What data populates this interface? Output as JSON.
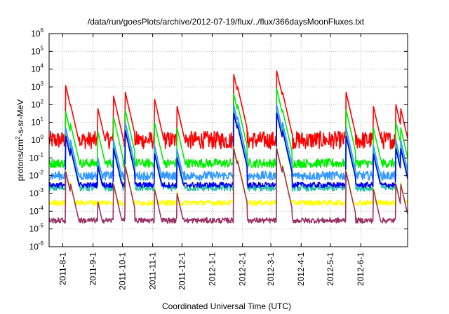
{
  "chart_data": {
    "type": "line",
    "title": "/data/run/goesPlots/archive/2012-07-19/flux/../flux/366daysMoonFluxes.txt",
    "xlabel": "Coordinated Universal Time (UTC)",
    "ylabel": {
      "base": "protons/cm",
      "sup": "2",
      "rest": "-s-sr-MeV"
    },
    "y_scale": "log",
    "ylim": [
      1e-06,
      1000000.0
    ],
    "y_ticks": [
      {
        "value": 1e-06,
        "base": "10",
        "exp": "-6"
      },
      {
        "value": 1e-05,
        "base": "10",
        "exp": "-5"
      },
      {
        "value": 0.0001,
        "base": "10",
        "exp": "-4"
      },
      {
        "value": 0.001,
        "base": "10",
        "exp": "-3"
      },
      {
        "value": 0.01,
        "base": "10",
        "exp": "-2"
      },
      {
        "value": 0.1,
        "base": "10",
        "exp": "-1"
      },
      {
        "value": 1.0,
        "base": "10",
        "exp": "0"
      },
      {
        "value": 10.0,
        "base": "10",
        "exp": "1"
      },
      {
        "value": 100.0,
        "base": "10",
        "exp": "2"
      },
      {
        "value": 1000.0,
        "base": "10",
        "exp": "3"
      },
      {
        "value": 10000.0,
        "base": "10",
        "exp": "4"
      },
      {
        "value": 100000.0,
        "base": "10",
        "exp": "5"
      },
      {
        "value": 1000000.0,
        "base": "10",
        "exp": "6"
      }
    ],
    "xlim": [
      "2011-07-18",
      "2012-07-19"
    ],
    "x_ticks": [
      "2011-8-1",
      "2011-9-1",
      "2011-10-1",
      "2011-11-1",
      "2011-12-1",
      "2012-1-1",
      "2012-2-1",
      "2012-3-1",
      "2012-4-1",
      "2012-5-1",
      "2012-6-1"
    ],
    "grid": true,
    "events": [
      {
        "date": "2011-08-04",
        "red": 1200,
        "green": 40,
        "blue": 5
      },
      {
        "date": "2011-08-09",
        "red": 100,
        "green": 8,
        "blue": 1
      },
      {
        "date": "2011-09-06",
        "red": 60,
        "green": 3,
        "blue": 0.1
      },
      {
        "date": "2011-09-22",
        "red": 300,
        "green": 20,
        "blue": 1
      },
      {
        "date": "2011-10-04",
        "red": 500,
        "green": 50,
        "blue": 10
      },
      {
        "date": "2011-11-03",
        "red": 200,
        "green": 10,
        "blue": 0.5
      },
      {
        "date": "2011-11-26",
        "red": 80,
        "green": 5,
        "blue": 0.3
      },
      {
        "date": "2012-01-23",
        "red": 5000,
        "green": 400,
        "blue": 100
      },
      {
        "date": "2012-01-27",
        "red": 1000,
        "green": 100,
        "blue": 20
      },
      {
        "date": "2012-03-07",
        "red": 8000,
        "green": 800,
        "blue": 100
      },
      {
        "date": "2012-03-13",
        "red": 500,
        "green": 50,
        "blue": 10
      },
      {
        "date": "2012-05-17",
        "red": 500,
        "green": 50,
        "blue": 5
      },
      {
        "date": "2012-06-14",
        "red": 80,
        "green": 5,
        "blue": 0.5
      },
      {
        "date": "2012-07-07",
        "red": 100,
        "green": 10,
        "blue": 1
      },
      {
        "date": "2012-07-12",
        "red": 60,
        "green": 5,
        "blue": 1
      }
    ],
    "series": [
      {
        "color": "#ff0000",
        "baseline": 1.0,
        "noise": 1.0
      },
      {
        "color": "#00ee00",
        "baseline": 0.05,
        "noise": 0.5
      },
      {
        "color": "#3399ff",
        "baseline": 0.01,
        "noise": 0.5
      },
      {
        "color": "#2bbfa8",
        "baseline": 0.002,
        "noise": 0.35
      },
      {
        "color": "#0000ee",
        "baseline": 0.003,
        "noise": 0.3
      },
      {
        "color": "#ffff00",
        "baseline": 0.0003,
        "noise": 0.3
      },
      {
        "color": "#993366",
        "baseline": 3e-05,
        "noise": 0.3
      }
    ]
  }
}
